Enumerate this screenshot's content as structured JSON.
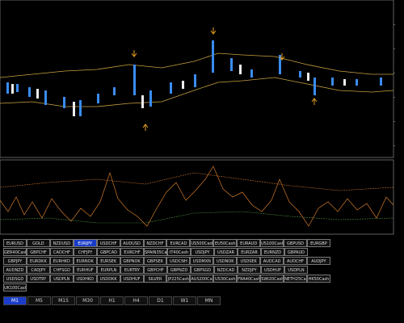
{
  "symbols": [
    [
      "EURUSD",
      "GOLD",
      "NZDUSD",
      "EURJPY",
      "USDCHF",
      "AUDUSD",
      "NZDCHF",
      "EURCAD",
      "US500Cash",
      "EU50Cash",
      "EURAUD",
      "US100Cash",
      "GBPUSD",
      "EURGBP"
    ],
    [
      "GER40Cash",
      "GBPCHF",
      "CADCHF",
      "CHFJPY",
      "GBPCAD",
      "EURCHF",
      "SPAIN35Cash",
      "IT40Cash",
      "USDJPY",
      "USDZAR",
      "EURZAR",
      "EURNZD",
      "GBPAUD"
    ],
    [
      "GBPJPY",
      "EURDKK",
      "EURHKD",
      "EURNOK",
      "EURSEK",
      "GBPNOK",
      "GBPSEK",
      "USDCNH",
      "USDMXN",
      "USDNOK",
      "USDSEK",
      "AUDCAD",
      "AUDCHF",
      "AUDJPY"
    ],
    [
      "AUDNZD",
      "CADJPY",
      "CHFSGD",
      "EURHUF",
      "EURPLN",
      "EURTRY",
      "GBPCHF",
      "GBPNZD",
      "GBPSGD",
      "NZDCAD",
      "NZDJPY",
      "USDHUF",
      "USDPLN"
    ],
    [
      "USDSGD",
      "USDTRY",
      "USDPLN",
      "USDHKD",
      "USDDKK",
      "USDHUF",
      "SILVER",
      "JP225Cash",
      "AUS200Cash",
      "US30Cash",
      "FRA40Cash",
      "SWI20Cash",
      "NETH25Cash",
      "HK50Cash"
    ],
    [
      "UK100Cash"
    ]
  ],
  "active_symbol": "EURJPY",
  "timeframes": [
    "M1",
    "M5",
    "M15",
    "M30",
    "H1",
    "H4",
    "D1",
    "W1",
    "MN"
  ],
  "active_timeframe": "M1"
}
